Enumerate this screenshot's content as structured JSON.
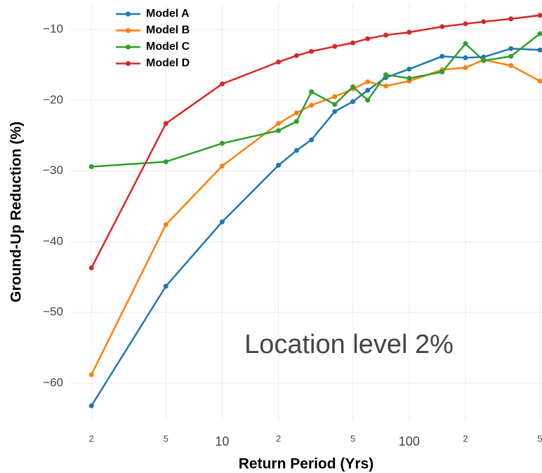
{
  "chart_data": {
    "type": "line",
    "x_label": "Return Period (Yrs)",
    "y_label": "Ground-Up Reduction (%)",
    "annotation": "Location level 2%",
    "log_x": true,
    "grid": true,
    "legend": "top-left",
    "x": [
      2,
      5,
      10,
      20,
      25,
      30,
      40,
      50,
      60,
      75,
      100,
      150,
      200,
      250,
      350,
      500
    ],
    "xlim": [
      1.54,
      513
    ],
    "xticks": [
      2,
      5,
      10,
      {
        "value": 20,
        "label": "2"
      },
      {
        "value": 50,
        "label": "5"
      },
      100,
      {
        "value": 200,
        "label": "2"
      },
      {
        "value": 500,
        "label": "5"
      }
    ],
    "ylim": [
      -65.36,
      -6.33
    ],
    "yticks": [
      {
        "value": -10,
        "label": "−10"
      },
      {
        "value": -20,
        "label": "−20"
      },
      {
        "value": -30,
        "label": "−30"
      },
      {
        "value": -40,
        "label": "−40"
      },
      {
        "value": -50,
        "label": "−50"
      },
      {
        "value": -60,
        "label": "−60"
      }
    ],
    "series": [
      {
        "name": "Model A",
        "color": "#1f77b4",
        "values": [
          -63.2,
          -46.3,
          -37.2,
          -29.2,
          -27.1,
          -25.6,
          -21.6,
          -20.2,
          -18.6,
          -16.8,
          -15.6,
          -13.8,
          -14.0,
          -13.9,
          -12.7,
          -12.9
        ]
      },
      {
        "name": "Model B",
        "color": "#ff7f0e",
        "values": [
          -58.8,
          -37.6,
          -29.3,
          -23.3,
          -21.8,
          -20.7,
          -19.5,
          -18.4,
          -17.4,
          -18.0,
          -17.3,
          -15.7,
          -15.4,
          -14.3,
          -15.1,
          -17.3
        ]
      },
      {
        "name": "Model C",
        "color": "#2ca02c",
        "values": [
          -29.4,
          -28.7,
          -26.1,
          -24.3,
          -23.0,
          -18.8,
          -20.6,
          -18.1,
          -20.0,
          -16.4,
          -16.9,
          -16.0,
          -12.0,
          -14.4,
          -13.8,
          -10.6
        ]
      },
      {
        "name": "Model D",
        "color": "#d62728",
        "values": [
          -43.7,
          -23.3,
          -17.7,
          -14.6,
          -13.7,
          -13.1,
          -12.4,
          -11.9,
          -11.3,
          -10.8,
          -10.4,
          -9.6,
          -9.2,
          -8.9,
          -8.5,
          -8.0
        ]
      }
    ]
  }
}
